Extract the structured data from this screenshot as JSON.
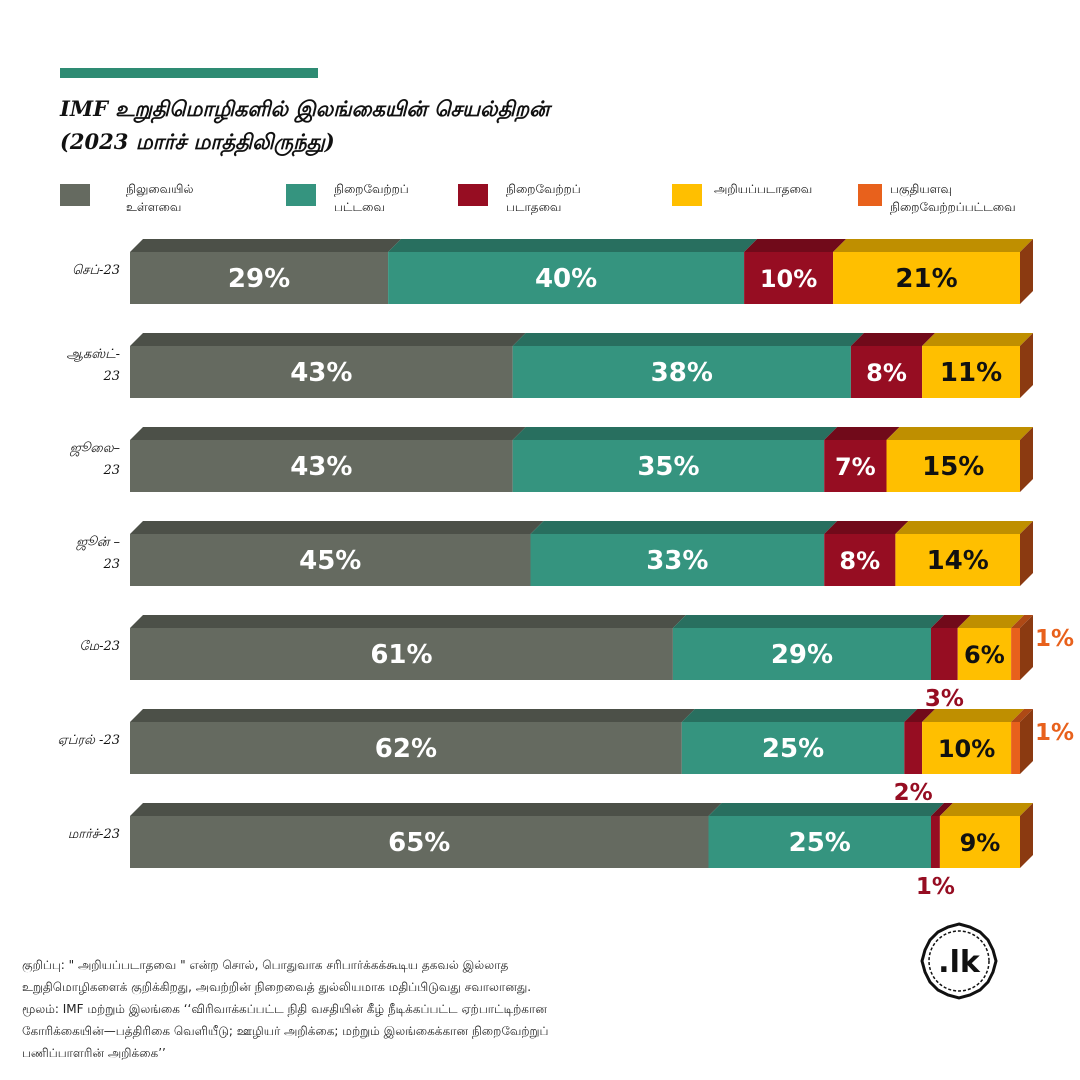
{
  "title": {
    "line1": "IMF உறுதிமொழிகளில் இலங்கையின் செயல்திறன்",
    "line2": "(2023 மார்ச் மாத்திலிருந்து)"
  },
  "colors": {
    "accent_rule": "#2e8b73",
    "pending": "#656a60",
    "fulfilled": "#35947f",
    "not_fulfilled": "#960d22",
    "unknown": "#ffbf00",
    "partial": "#e8611c"
  },
  "legend": [
    {
      "key": "pending",
      "label": "நிலுவையில்\nஉள்ளவை"
    },
    {
      "key": "fulfilled",
      "label": "நிறைவேற்றப்\nபட்டவை"
    },
    {
      "key": "not_fulfilled",
      "label": "நிறைவேற்றப்\nபடாதவை"
    },
    {
      "key": "unknown",
      "label": "அறியப்படாதவை"
    },
    {
      "key": "partial",
      "label": "பகுதியளவு\nநிறைவேற்றப்பட்டவை"
    }
  ],
  "chart_data": {
    "type": "bar",
    "orientation": "horizontal-stacked",
    "unit": "%",
    "categories": [
      "செப்-23",
      "ஆகஸ்ட்-23",
      "ஜூலை–23",
      "ஜூன் –23",
      "மே-23",
      "ஏப்ரல் -23",
      "மார்ச்-23"
    ],
    "category_lines": [
      [
        "செப்-23"
      ],
      [
        "ஆகஸ்ட்-",
        "23"
      ],
      [
        "ஜூலை–",
        "23"
      ],
      [
        "ஜூன் –",
        "23"
      ],
      [
        "மே-23"
      ],
      [
        "ஏப்ரல் -23"
      ],
      [
        "மார்ச்-23"
      ]
    ],
    "series": [
      {
        "name": "நிலுவையில் உள்ளவை",
        "key": "pending",
        "values": [
          29,
          43,
          43,
          45,
          61,
          62,
          65
        ]
      },
      {
        "name": "நிறைவேற்றப் பட்டவை",
        "key": "fulfilled",
        "values": [
          40,
          38,
          35,
          33,
          29,
          25,
          25
        ]
      },
      {
        "name": "நிறைவேற்றப் படாதவை",
        "key": "not_fulfilled",
        "values": [
          10,
          8,
          7,
          8,
          3,
          2,
          1
        ]
      },
      {
        "name": "அறியப்படாதவை",
        "key": "unknown",
        "values": [
          21,
          11,
          15,
          14,
          6,
          10,
          9
        ]
      },
      {
        "name": "பகுதியளவு நிறைவேற்றப்பட்டவை",
        "key": "partial",
        "values": [
          0,
          0,
          0,
          0,
          1,
          1,
          0
        ]
      }
    ],
    "xlim": [
      0,
      100
    ],
    "grid": false,
    "legend_position": "top"
  },
  "footnote": {
    "line1": "குறிப்பு: \" அறியப்படாதவை \" என்ற சொல், பொதுவாக சரிபார்க்கக்கூடிய தகவல் இல்லாத",
    "line2": "உறுதிமொழிகளைக் குறிக்கிறது, அவற்றின் நிறைவைத் துல்லியமாக மதிப்பிடுவது சவாலானது.",
    "line3": "மூலம்: IMF மற்றும் இலங்கை ‘‘விரிவாக்கப்பட்ட நிதி வசதியின் கீழ் நீடிக்கப்பட்ட ஏற்பாட்டிற்கான",
    "line4": "கோரிக்கையின்—பத்திரிகை வெளியீடு; ஊழியர் அறிக்கை; மற்றும் இலங்கைக்கான நிறைவேற்றுப்",
    "line5": "பணிப்பாளரின் அறிக்கை’’"
  },
  "logo": {
    "text": ".lk",
    "icon": "dotlk-seal-icon"
  }
}
